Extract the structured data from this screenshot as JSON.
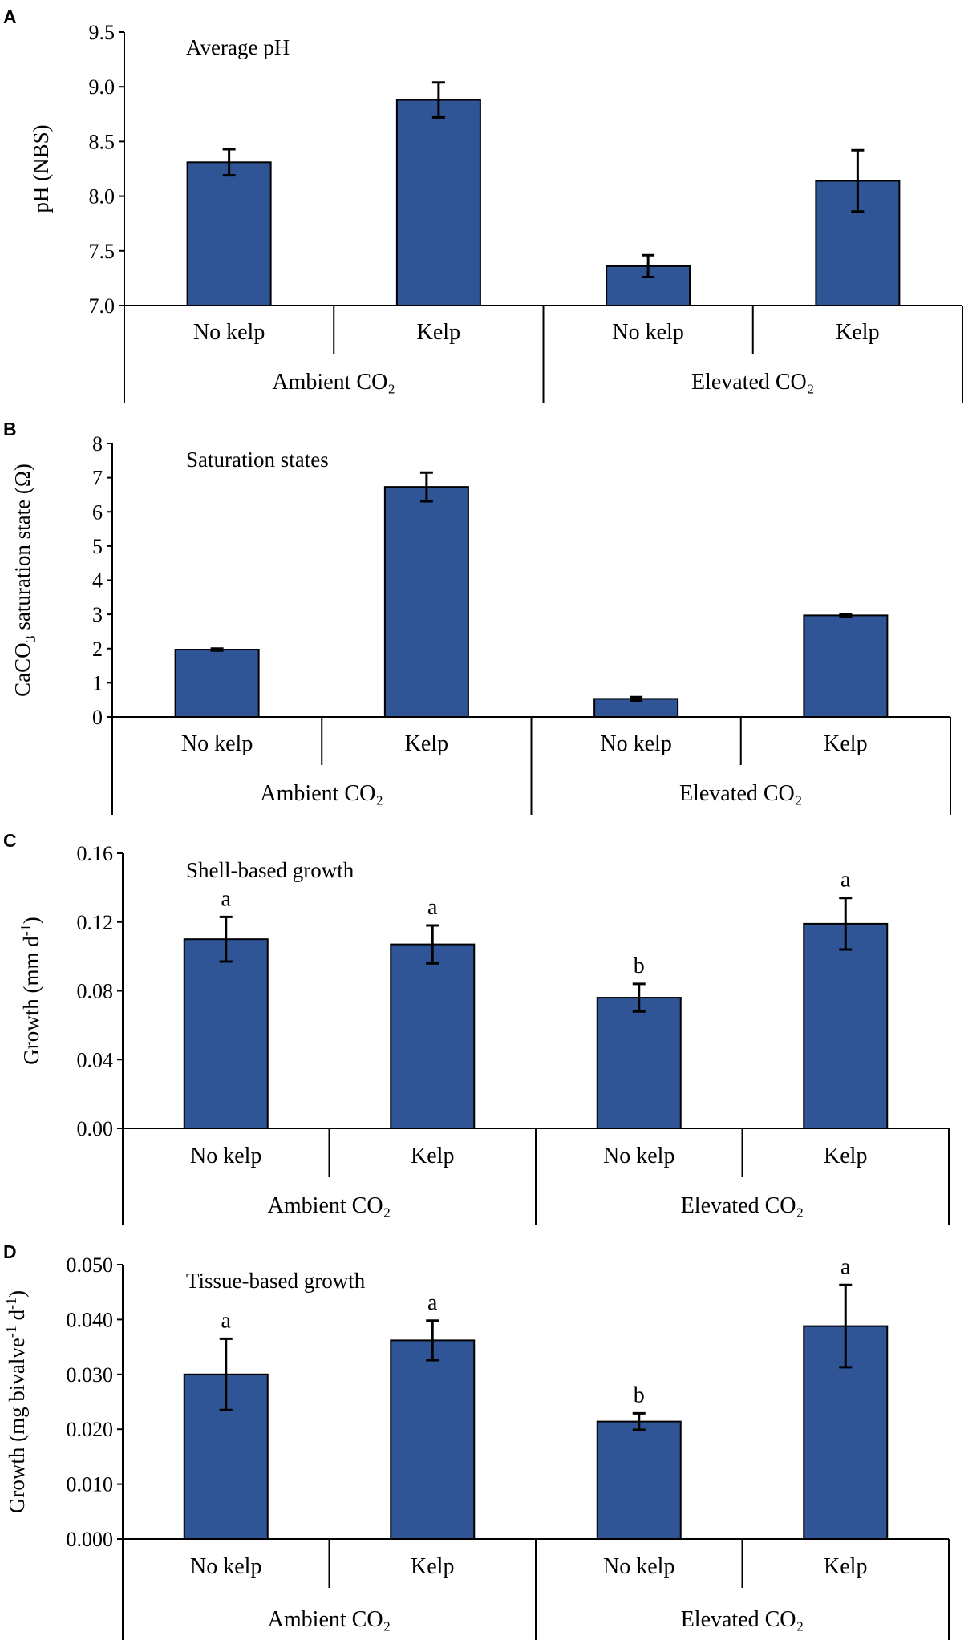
{
  "chart_data": [
    {
      "panel": "A",
      "type": "bar",
      "title": "Average pH",
      "ylabel": "pH (NBS)",
      "ylabel_parts": [
        {
          "text": "pH (NBS)",
          "sup": false,
          "sub": false
        }
      ],
      "ylim": [
        7.0,
        9.5
      ],
      "yticks": [
        7.0,
        7.5,
        8.0,
        8.5,
        9.0,
        9.5
      ],
      "ytick_labels": [
        "7.0",
        "7.5",
        "8.0",
        "8.5",
        "9.0",
        "9.5"
      ],
      "categories": [
        "No kelp",
        "Kelp",
        "No kelp",
        "Kelp"
      ],
      "groups": [
        "Ambient CO₂",
        "Elevated CO₂"
      ],
      "values": [
        8.31,
        8.88,
        7.36,
        8.14
      ],
      "errors": [
        0.12,
        0.16,
        0.1,
        0.28
      ],
      "letters": [
        "",
        "",
        "",
        ""
      ]
    },
    {
      "panel": "B",
      "type": "bar",
      "title": "Saturation states",
      "ylabel": "CaCO3 saturation state (Ω)",
      "ylabel_parts": [
        {
          "text": "CaCO",
          "sup": false,
          "sub": false
        },
        {
          "text": "3",
          "sup": false,
          "sub": true
        },
        {
          "text": " saturation state (Ω)",
          "sup": false,
          "sub": false
        }
      ],
      "ylim": [
        0,
        8
      ],
      "yticks": [
        0,
        1,
        2,
        3,
        4,
        5,
        6,
        7,
        8
      ],
      "ytick_labels": [
        "0",
        "1",
        "2",
        "3",
        "4",
        "5",
        "6",
        "7",
        "8"
      ],
      "categories": [
        "No kelp",
        "Kelp",
        "No kelp",
        "Kelp"
      ],
      "groups": [
        "Ambient CO₂",
        "Elevated CO₂"
      ],
      "values": [
        1.97,
        6.73,
        0.53,
        2.97
      ],
      "errors": [
        0.03,
        0.42,
        0.05,
        0.03
      ],
      "letters": [
        "",
        "",
        "",
        ""
      ]
    },
    {
      "panel": "C",
      "type": "bar",
      "title": "Shell-based growth",
      "ylabel": "Growth (mm d-1)",
      "ylabel_parts": [
        {
          "text": "Growth (mm d",
          "sup": false,
          "sub": false
        },
        {
          "text": "-1",
          "sup": true,
          "sub": false
        },
        {
          "text": ")",
          "sup": false,
          "sub": false
        }
      ],
      "ylim": [
        0,
        0.16
      ],
      "yticks": [
        0,
        0.04,
        0.08,
        0.12,
        0.16
      ],
      "ytick_labels": [
        "0.00",
        "0.04",
        "0.08",
        "0.12",
        "0.16"
      ],
      "categories": [
        "No kelp",
        "Kelp",
        "No kelp",
        "Kelp"
      ],
      "groups": [
        "Ambient CO₂",
        "Elevated CO₂"
      ],
      "values": [
        0.11,
        0.107,
        0.076,
        0.119
      ],
      "errors": [
        0.013,
        0.011,
        0.008,
        0.015
      ],
      "letters": [
        "a",
        "a",
        "b",
        "a"
      ]
    },
    {
      "panel": "D",
      "type": "bar",
      "title": "Tissue-based growth",
      "ylabel": "Growth (mg bivalve-1 d-1)",
      "ylabel_parts": [
        {
          "text": "Growth (mg bivalve",
          "sup": false,
          "sub": false
        },
        {
          "text": "-1",
          "sup": true,
          "sub": false
        },
        {
          "text": " d",
          "sup": false,
          "sub": false
        },
        {
          "text": "-1",
          "sup": true,
          "sub": false
        },
        {
          "text": ")",
          "sup": false,
          "sub": false
        }
      ],
      "ylim": [
        0,
        0.05
      ],
      "yticks": [
        0,
        0.01,
        0.02,
        0.03,
        0.04,
        0.05
      ],
      "ytick_labels": [
        "0.000",
        "0.010",
        "0.020",
        "0.030",
        "0.040",
        "0.050"
      ],
      "categories": [
        "No kelp",
        "Kelp",
        "No kelp",
        "Kelp"
      ],
      "groups": [
        "Ambient CO₂",
        "Elevated CO₂"
      ],
      "values": [
        0.03,
        0.0362,
        0.0214,
        0.0388
      ],
      "errors": [
        0.0065,
        0.0036,
        0.0015,
        0.0075
      ],
      "letters": [
        "a",
        "a",
        "b",
        "a"
      ]
    }
  ]
}
